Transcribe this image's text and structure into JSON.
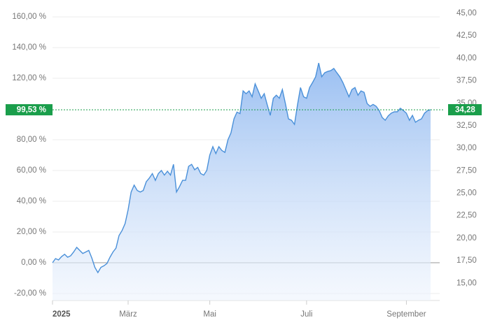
{
  "chart_data": {
    "type": "area",
    "series": [
      {
        "color": "#4a90d9",
        "values": [
          0,
          2.7,
          1.8,
          4,
          5.5,
          3.6,
          4.5,
          7,
          10,
          8,
          6,
          7,
          8,
          3,
          -3,
          -6.4,
          -3,
          -2,
          -0.5,
          3.6,
          7,
          9.5,
          17.7,
          21,
          25.5,
          34.5,
          46,
          50.5,
          47,
          46,
          47,
          52.7,
          55,
          58,
          53.6,
          58,
          60,
          57,
          59.5,
          57,
          64,
          46,
          49.5,
          53.6,
          53.6,
          62.7,
          64,
          60.5,
          62,
          58,
          57,
          60,
          70,
          75.5,
          71,
          75.5,
          73,
          71.8,
          80,
          84.5,
          93.6,
          98,
          97,
          111.8,
          110,
          111.8,
          108,
          116.4,
          111.8,
          107,
          110,
          102.7,
          95.9,
          107,
          109,
          107,
          112.7,
          103.6,
          93.6,
          92.7,
          90,
          102.7,
          114,
          108,
          107,
          114,
          117.3,
          121,
          130,
          121,
          123.6,
          124.5,
          125,
          126.4,
          123.6,
          121,
          117.3,
          112.7,
          108,
          112.7,
          114,
          109,
          111.8,
          110.9,
          103.6,
          101.8,
          103,
          101.8,
          99,
          94.5,
          92.7,
          95.5,
          97.3,
          98.2,
          98.2,
          100.5,
          99,
          97.3,
          92.7,
          95.9,
          91.4,
          92.7,
          93.6,
          97.3,
          99,
          99.53
        ]
      }
    ],
    "xlim": [
      0,
      125
    ],
    "xticks": [
      {
        "value": 0,
        "label": "2025"
      },
      {
        "value": 25,
        "label": "März"
      },
      {
        "value": 52,
        "label": "Mai"
      },
      {
        "value": 84,
        "label": "Juli"
      },
      {
        "value": 117,
        "label": "September"
      }
    ],
    "ylim": [
      -29.1,
      166.4
    ],
    "yticks": [
      {
        "value": -20,
        "label": "-20,00 %"
      },
      {
        "value": 0,
        "label": "0,00 %"
      },
      {
        "value": 20,
        "label": "20,00 %"
      },
      {
        "value": 40,
        "label": "40,00 %"
      },
      {
        "value": 60,
        "label": "60,00 %"
      },
      {
        "value": 80,
        "label": "80,00 %"
      },
      {
        "value": 120,
        "label": "120,00 %"
      },
      {
        "value": 140,
        "label": "140,00 %"
      },
      {
        "value": 160,
        "label": "160,00 %"
      }
    ],
    "y2lim": [
      12.3,
      45.7
    ],
    "y2ticks": [
      {
        "value": 15,
        "label": "15,00"
      },
      {
        "value": 17.5,
        "label": "17,50"
      },
      {
        "value": 20,
        "label": "20,00"
      },
      {
        "value": 22.5,
        "label": "22,50"
      },
      {
        "value": 25,
        "label": "25,00"
      },
      {
        "value": 27.5,
        "label": "27,50"
      },
      {
        "value": 30,
        "label": "30,00"
      },
      {
        "value": 32.5,
        "label": "32,50"
      },
      {
        "value": 35,
        "label": "35,00"
      },
      {
        "value": 37.5,
        "label": "37,50"
      },
      {
        "value": 40,
        "label": "40,00"
      },
      {
        "value": 42.5,
        "label": "42,50"
      },
      {
        "value": 45,
        "label": "45,00"
      }
    ],
    "grid": true,
    "current_value": {
      "value": 99.53,
      "label": "99,53 %"
    },
    "current_value_y2": {
      "value": 34.28,
      "label": "34,28"
    },
    "highlight_color": "#1a9e4b"
  }
}
